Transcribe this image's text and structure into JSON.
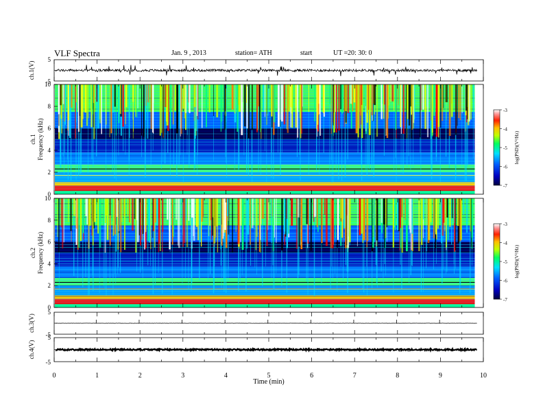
{
  "header": {
    "title": "VLF  Spectra",
    "date": "Jan. 9  , 2013",
    "station": "station= ATH",
    "start_label": "start",
    "ut_label": "UT  =",
    "start_time": "20: 30: 0"
  },
  "chart_data": [
    {
      "type": "line",
      "panel": "ch1-waveform",
      "ylabel": "ch.1(V)",
      "yticks": [
        "5",
        "-5"
      ],
      "ylim": [
        -5,
        5
      ],
      "xlim": [
        0,
        10
      ],
      "baseline": 0,
      "approx_signal_range": [
        -1.5,
        1.5
      ]
    },
    {
      "type": "heatmap",
      "panel": "ch1-spectrogram",
      "ylabel": "ch.1\nFrequency  (kHz)",
      "ylabel_lines": [
        "ch.1",
        "Frequency  (kHz)"
      ],
      "yticks": [
        "0",
        "2",
        "4",
        "6",
        "8",
        "10"
      ],
      "ylim": [
        0,
        10
      ],
      "xlim": [
        0,
        10
      ],
      "data_end_min": 9.8,
      "colorbar": {
        "label": "log(PSD)(V²/Hz)",
        "ticks": [
          "-3",
          "-4",
          "-5",
          "-6",
          "-7"
        ],
        "range": [
          -7,
          -3
        ],
        "colormap": [
          "#000080",
          "#0000ff",
          "#00bfff",
          "#00ff7f",
          "#ffff00",
          "#ff8000",
          "#ff0000",
          "#ffffff"
        ]
      }
    },
    {
      "type": "heatmap",
      "panel": "ch2-spectrogram",
      "ylabel": "ch.2\nFrequency  (kHz)",
      "ylabel_lines": [
        "ch.2",
        "Frequency  (kHz)"
      ],
      "yticks": [
        "0",
        "2",
        "4",
        "6",
        "8",
        "10"
      ],
      "ylim": [
        0,
        10
      ],
      "xlim": [
        0,
        10
      ],
      "data_end_min": 9.8,
      "colorbar": {
        "label": "log(PSD)(V²/Hz)",
        "ticks": [
          "-3",
          "-4",
          "-5",
          "-6",
          "-7"
        ],
        "range": [
          -7,
          -3
        ]
      }
    },
    {
      "type": "line",
      "panel": "ch3-waveform",
      "ylabel": "ch.3(V)",
      "yticks": [
        "5",
        "-5"
      ],
      "ylim": [
        -5,
        5
      ],
      "xlim": [
        0,
        10
      ],
      "baseline": 0
    },
    {
      "type": "line",
      "panel": "ch4-waveform",
      "ylabel": "ch.4(V)",
      "yticks": [
        "5",
        "-5"
      ],
      "ylim": [
        -5,
        5
      ],
      "xlim": [
        0,
        10
      ],
      "baseline": 0
    }
  ],
  "xaxis": {
    "label": "Time  (min)",
    "ticks": [
      "0",
      "1",
      "2",
      "3",
      "4",
      "5",
      "6",
      "7",
      "8",
      "9",
      "10"
    ],
    "xlim": [
      0,
      10
    ]
  }
}
